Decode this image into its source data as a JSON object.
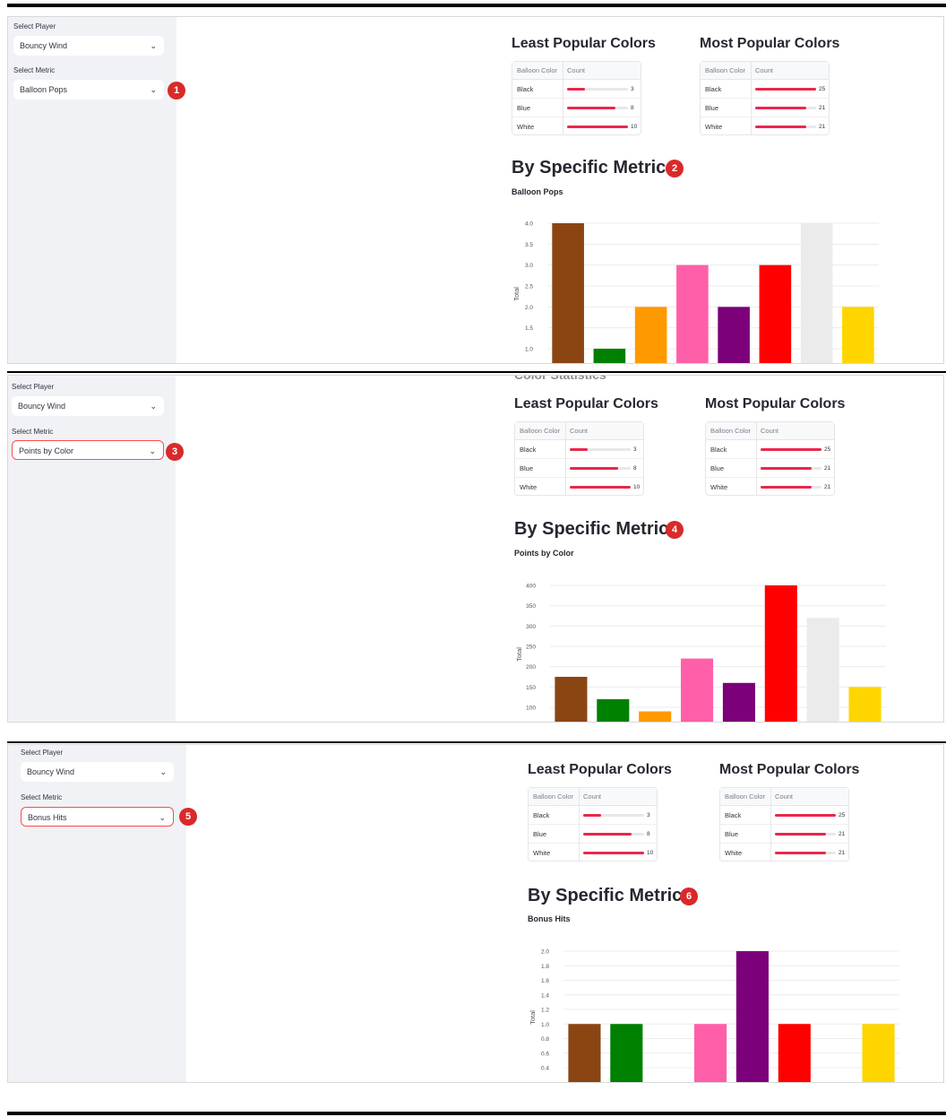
{
  "screens": [
    {
      "player_label": "Select Player",
      "player_value": "Bouncy Wind",
      "metric_label": "Select Metric",
      "metric_value": "Balloon Pops",
      "callout_select": "1",
      "callout_chart": "2",
      "least_title": "Least Popular Colors",
      "most_title": "Most Popular Colors",
      "section_title": "By Specific Metric",
      "chart_title": "Balloon Pops"
    },
    {
      "player_label": "Select Player",
      "player_value": "Bouncy Wind",
      "metric_label": "Select Metric",
      "metric_value": "Points by Color",
      "callout_select": "3",
      "callout_chart": "4",
      "ghost_heading": "Color Statistics",
      "least_title": "Least Popular Colors",
      "most_title": "Most Popular Colors",
      "section_title": "By Specific Metric",
      "chart_title": "Points by Color"
    },
    {
      "player_label": "Select Player",
      "player_value": "Bouncy Wind",
      "metric_label": "Select Metric",
      "metric_value": "Bonus Hits",
      "callout_select": "5",
      "callout_chart": "6",
      "least_title": "Least Popular Colors",
      "most_title": "Most Popular Colors",
      "section_title": "By Specific Metric",
      "chart_title": "Bonus Hits"
    }
  ],
  "table_headers": {
    "color": "Balloon Color",
    "count": "Count"
  },
  "least_popular": [
    {
      "color": "Black",
      "count": 3
    },
    {
      "color": "Blue",
      "count": 8
    },
    {
      "color": "White",
      "count": 10
    }
  ],
  "most_popular": [
    {
      "color": "Black",
      "count": 25
    },
    {
      "color": "Blue",
      "count": 21
    },
    {
      "color": "White",
      "count": 21
    }
  ],
  "least_max": 10,
  "most_max": 25,
  "bar_colors": [
    "#8b4513",
    "#008000",
    "#ff9900",
    "#ff5fa8",
    "#7b0079",
    "#ff0000",
    "#ebebeb",
    "#ffd500"
  ],
  "accent_color": "#e8284d",
  "icons": {
    "select_caret": "chevron-down-icon"
  },
  "chart_data": [
    {
      "type": "bar",
      "title": "Balloon Pops",
      "ylabel": "Total",
      "values": [
        4.0,
        1.0,
        2.0,
        3.0,
        2.0,
        3.0,
        4.0,
        2.0
      ],
      "yticks": [
        1.0,
        1.5,
        2.0,
        2.5,
        3.0,
        3.5,
        4.0
      ],
      "grid": true
    },
    {
      "type": "bar",
      "title": "Points by Color",
      "ylabel": "Total",
      "values": [
        175,
        120,
        90,
        220,
        160,
        400,
        320,
        150
      ],
      "yticks": [
        100,
        150,
        200,
        250,
        300,
        350,
        400
      ],
      "grid": true
    },
    {
      "type": "bar",
      "title": "Bonus Hits",
      "ylabel": "Total",
      "values": [
        1.0,
        1.0,
        0,
        1.0,
        2.0,
        1.0,
        0,
        1.0
      ],
      "yticks": [
        0.4,
        0.6,
        0.8,
        1.0,
        1.2,
        1.4,
        1.6,
        1.8,
        2.0
      ],
      "grid": true
    }
  ]
}
